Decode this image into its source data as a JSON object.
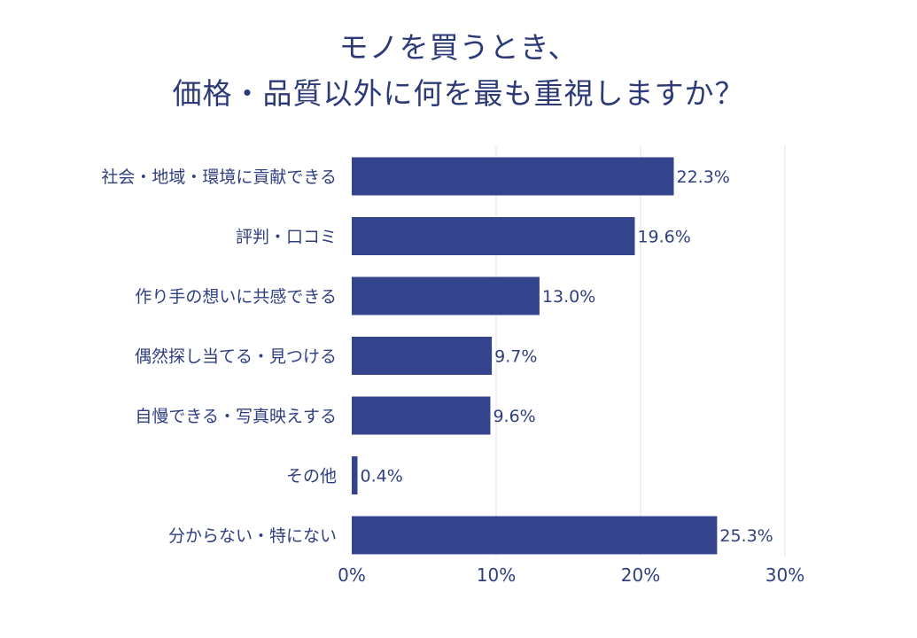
{
  "chart_data": {
    "type": "bar",
    "orientation": "horizontal",
    "title_lines": [
      "モノを買うとき、",
      "価格・品質以外に何を最も重視しますか？"
    ],
    "categories": [
      "社会・地域・環境に貢献できる",
      "評判・口コミ",
      "作り手の想いに共感できる",
      "偶然探し当てる・見つける",
      "自慢できる・写真映えする",
      "その他",
      "分からない・特にない"
    ],
    "values": [
      22.3,
      19.6,
      13.0,
      9.7,
      9.6,
      0.4,
      25.3
    ],
    "value_labels": [
      "22.3%",
      "19.6%",
      "13.0%",
      "9.7%",
      "9.6%",
      "0.4%",
      "25.3%"
    ],
    "x_ticks": [
      0,
      10,
      20,
      30
    ],
    "x_tick_labels": [
      "0%",
      "10%",
      "20%",
      "30%"
    ],
    "xlim": [
      0,
      30
    ],
    "grid": true,
    "colors": {
      "bar": "#33438c",
      "text": "#2f3f7f",
      "grid": "#dde0ea"
    }
  }
}
